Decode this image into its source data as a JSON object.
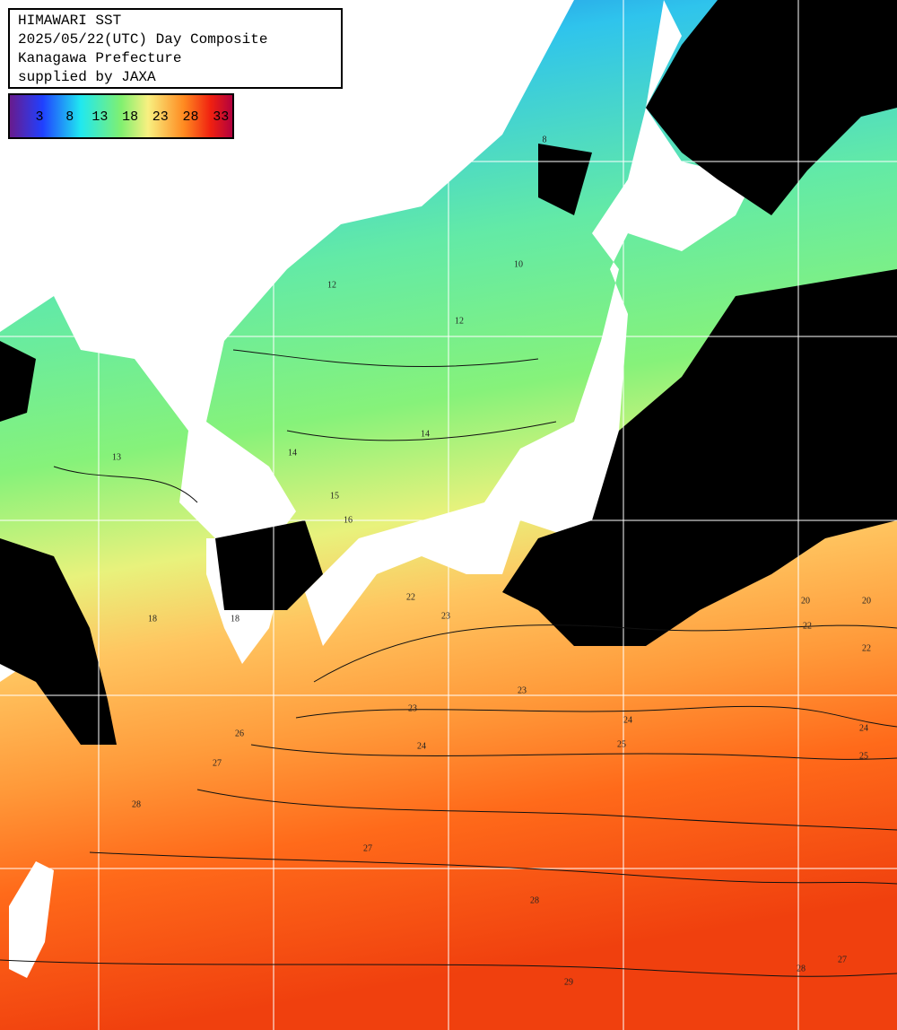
{
  "header": {
    "lines": [
      "HIMAWARI SST",
      "2025/05/22(UTC) Day Composite",
      "Kanagawa Prefecture",
      "supplied by JAXA"
    ]
  },
  "colorbar": {
    "labels": [
      3,
      8,
      13,
      18,
      23,
      28,
      33
    ]
  },
  "contour_labels": [
    8,
    10,
    12,
    12,
    14,
    14,
    15,
    16,
    13,
    18,
    18,
    20,
    20,
    22,
    22,
    22,
    23,
    23,
    23,
    24,
    24,
    24,
    25,
    25,
    26,
    27,
    27,
    28,
    28,
    28,
    29,
    27
  ]
}
